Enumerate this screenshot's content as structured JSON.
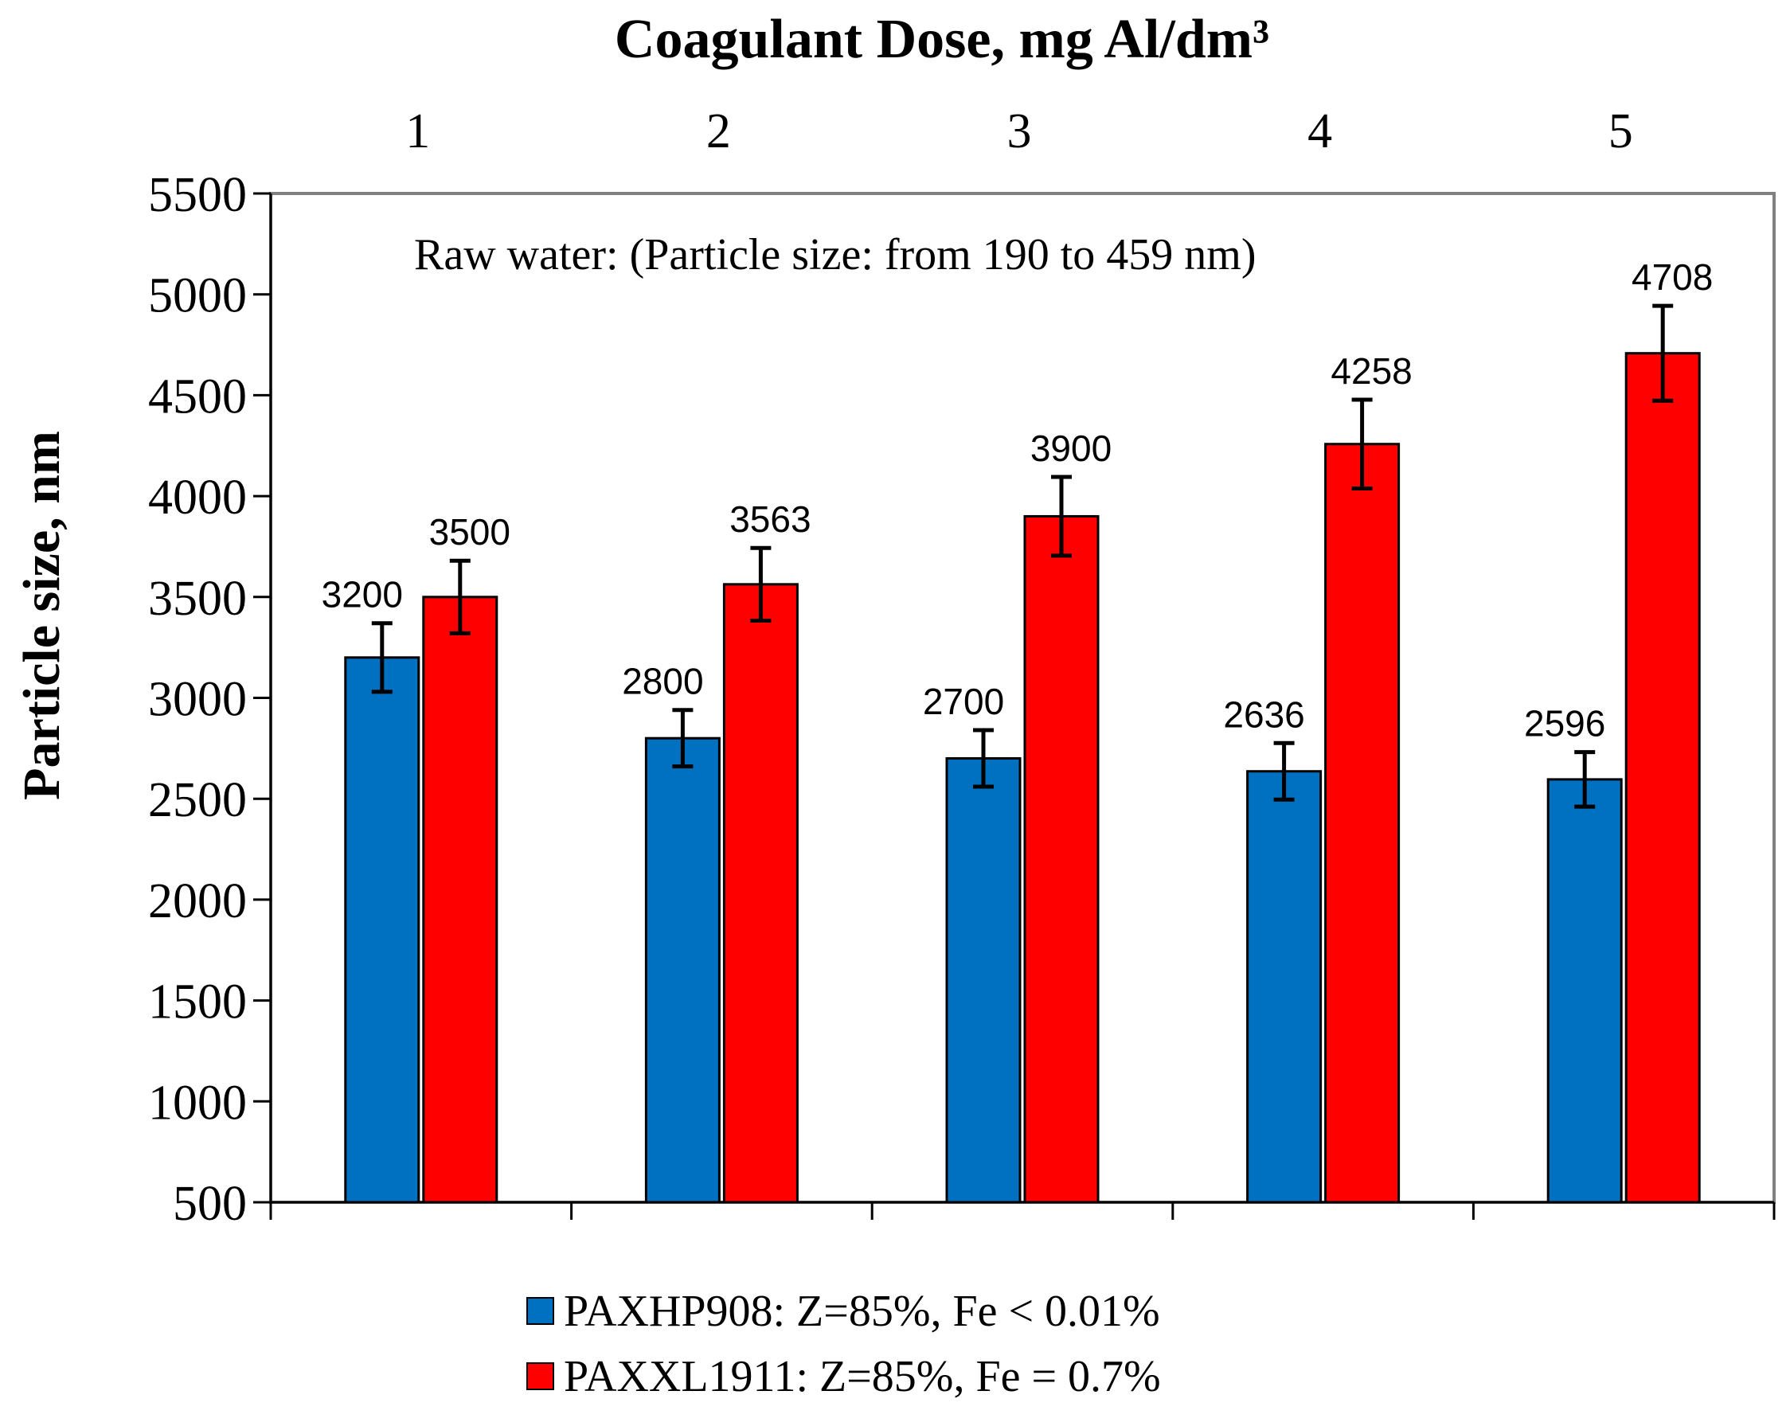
{
  "chart_data": {
    "type": "bar",
    "title": "Coagulant Dose, mg Al/dm³",
    "xlabel": "Coagulant Dose, mg Al/dm³",
    "ylabel": "Particle size,  nm",
    "categories": [
      "1",
      "2",
      "3",
      "4",
      "5"
    ],
    "ylim": [
      500,
      5500
    ],
    "yticks": [
      500,
      1000,
      1500,
      2000,
      2500,
      3000,
      3500,
      4000,
      4500,
      5000,
      5500
    ],
    "grid": false,
    "annotation": "Raw water: (Particle size: from 190 to 459  nm)",
    "legend_position": "bottom",
    "series": [
      {
        "name": "PAXHP908: Z=85%, Fe < 0.01%",
        "color": "#0070C0",
        "values": [
          3200,
          2800,
          2700,
          2636,
          2596
        ],
        "labels": [
          "3200",
          "2800",
          "2700",
          "2636",
          "2596"
        ],
        "error": [
          170,
          140,
          140,
          140,
          135
        ]
      },
      {
        "name": "PAXXL1911: Z=85%, Fe = 0.7%",
        "color": "#FF0000",
        "values": [
          3500,
          3563,
          3900,
          4258,
          4708
        ],
        "labels": [
          "3500",
          "3563",
          "3900",
          "4258",
          "4708"
        ],
        "error": [
          180,
          180,
          195,
          220,
          235
        ]
      }
    ]
  }
}
